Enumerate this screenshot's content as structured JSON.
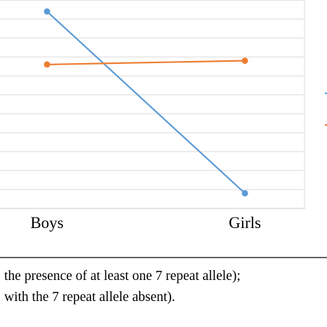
{
  "chart_data": {
    "type": "line",
    "categories": [
      "Boys",
      "Girls"
    ],
    "series": [
      {
        "values": [
          5.2,
          0.4
        ],
        "color": "#5b9bd5"
      },
      {
        "values": [
          3.8,
          3.9
        ],
        "color": "#ed7d31"
      }
    ],
    "ylim": [
      0,
      5.8
    ],
    "grid": true,
    "legend_markers": [
      "#5b9bd5",
      "#ed7d31"
    ]
  },
  "caption": {
    "line1": "the presence of at least one 7 repeat allele);",
    "line2": "with the 7 repeat allele absent)."
  }
}
